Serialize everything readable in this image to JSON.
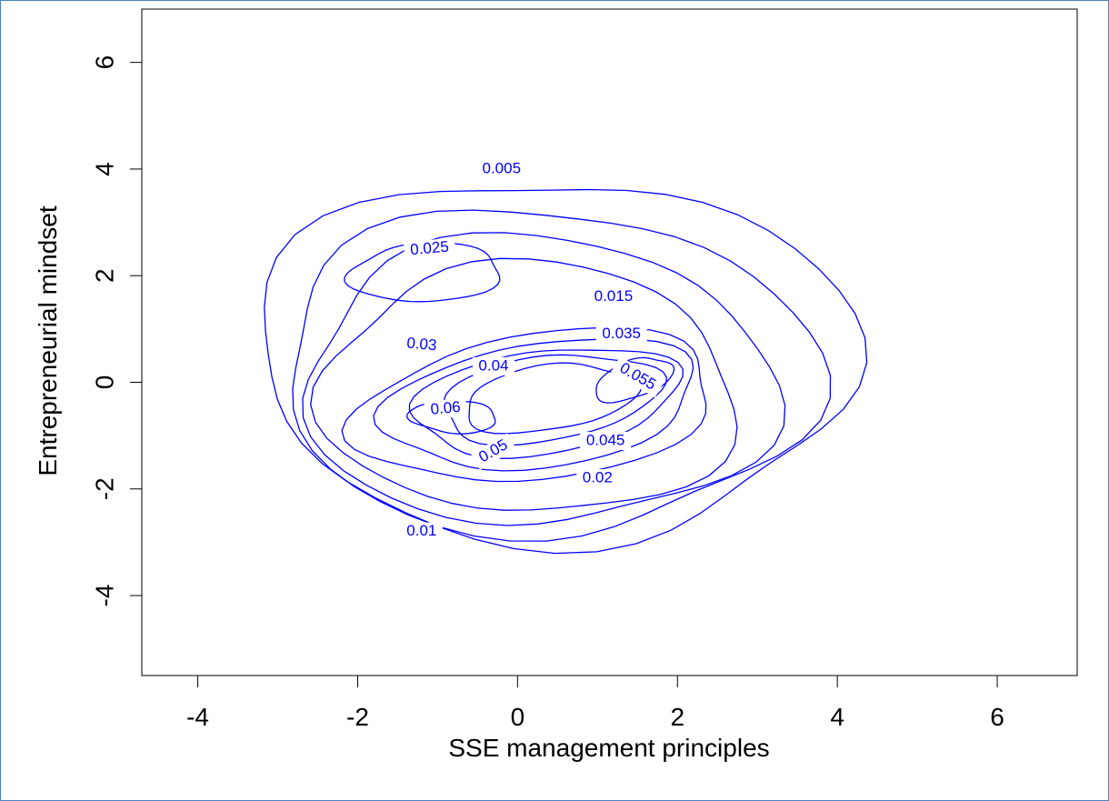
{
  "chart_data": {
    "type": "contour",
    "title": "",
    "xlabel": "SSE management principles",
    "ylabel": "Entrepreneurial mindset",
    "xlim": [
      -4.7,
      7.0
    ],
    "ylim": [
      -5.5,
      7.0
    ],
    "x_ticks": [
      -4,
      -2,
      0,
      2,
      4,
      6
    ],
    "y_ticks": [
      -4,
      -2,
      0,
      2,
      4,
      6
    ],
    "x_tick_labels": [
      "-4",
      "-2",
      "0",
      "2",
      "4",
      "6"
    ],
    "y_tick_labels": [
      "-4",
      "-2",
      "0",
      "2",
      "4",
      "6"
    ],
    "grid": false,
    "line_color": "#0000ff",
    "density_peaks": [
      {
        "x": -0.8,
        "y": -0.6,
        "value": 0.06
      },
      {
        "x": 1.5,
        "y": 0.2,
        "value": 0.055
      },
      {
        "x": -1.2,
        "y": 2.1,
        "value": 0.025
      }
    ],
    "contour_levels": [
      0.005,
      0.01,
      0.015,
      0.02,
      0.025,
      0.03,
      0.035,
      0.04,
      0.045,
      0.05,
      0.055,
      0.06
    ],
    "contour_labels": [
      {
        "text": "0.005",
        "x": -0.2,
        "y": 4.0,
        "angle": 0
      },
      {
        "text": "0.025",
        "x": -1.1,
        "y": 2.5,
        "angle": -5
      },
      {
        "text": "0.015",
        "x": 1.2,
        "y": 1.6,
        "angle": 0
      },
      {
        "text": "0.035",
        "x": 1.3,
        "y": 0.9,
        "angle": 0
      },
      {
        "text": "0.03",
        "x": -1.2,
        "y": 0.7,
        "angle": 5
      },
      {
        "text": "0.04",
        "x": -0.3,
        "y": 0.3,
        "angle": 0
      },
      {
        "text": "0.055",
        "x": 1.5,
        "y": 0.1,
        "angle": 30
      },
      {
        "text": "0.06",
        "x": -0.9,
        "y": -0.5,
        "angle": -5
      },
      {
        "text": "0.045",
        "x": 1.1,
        "y": -1.1,
        "angle": 0
      },
      {
        "text": "0.05",
        "x": -0.3,
        "y": -1.3,
        "angle": -30
      },
      {
        "text": "0.02",
        "x": 1.0,
        "y": -1.8,
        "angle": 0
      },
      {
        "text": "0.01",
        "x": -1.2,
        "y": -2.8,
        "angle": 0
      }
    ]
  }
}
